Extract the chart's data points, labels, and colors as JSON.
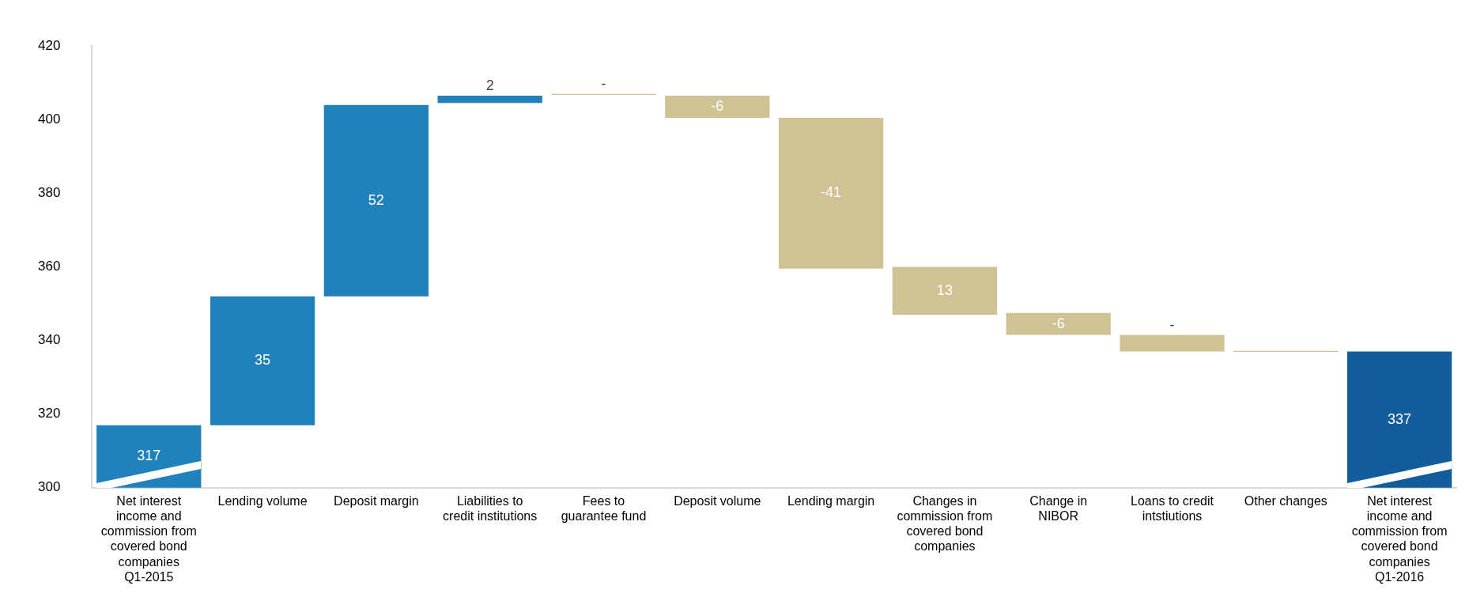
{
  "chart_data": {
    "type": "bar",
    "categories": [
      "Net interest income and commission from covered bond companies Q1-2015",
      "Lending volume",
      "Deposit margin",
      "Liabilities to credit institutions",
      "Fees to guarantee fund",
      "Deposit volume",
      "Lending margin",
      "Changes in commission from covered bond companies",
      "Change in NIBOR",
      "Loans to credit intstiutions",
      "Other changes",
      "Net interest income and commission from covered bond companies Q1-2016"
    ],
    "values": [
      317,
      35,
      52,
      2,
      -0.3,
      -6,
      -41,
      13,
      -6,
      -4.5,
      -0.3,
      337
    ],
    "base": [
      null,
      317,
      352,
      404.5,
      407,
      406.5,
      400.5,
      347,
      347.5,
      341.5,
      337.2,
      null
    ],
    "colors": [
      "#2181bb",
      "#2181bb",
      "#2181bb",
      "#2181bb",
      "#cfc396",
      "#cfc396",
      "#cfc396",
      "#cfc396",
      "#cfc396",
      "#cfc396",
      "#cfc396",
      "#135d9c"
    ],
    "value_labels": [
      "317",
      "35",
      "52",
      "2",
      "-",
      "-6",
      "-41",
      "13",
      "-6",
      "-",
      null,
      "337"
    ],
    "ylim": [
      300,
      420
    ],
    "yticks": [
      300,
      320,
      340,
      360,
      380,
      400,
      420
    ],
    "grid": false,
    "legend": false
  }
}
